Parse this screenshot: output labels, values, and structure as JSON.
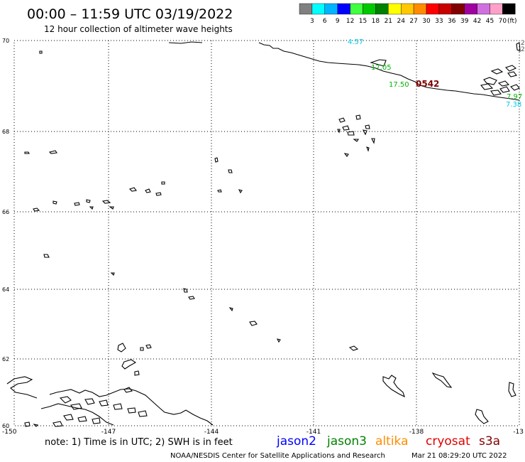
{
  "header": {
    "title": "00:00 – 11:59 UTC 03/19/2022",
    "subtitle": "12 hour collection of altimeter wave heights"
  },
  "scale": {
    "unit": "(ft)",
    "labels": [
      "3",
      "6",
      "9",
      "12",
      "15",
      "18",
      "21",
      "24",
      "27",
      "30",
      "33",
      "36",
      "39",
      "42",
      "45",
      "70"
    ],
    "colors": [
      "#808080",
      "#00ffff",
      "#00b4ff",
      "#0000ff",
      "#40ff40",
      "#00c800",
      "#008000",
      "#ffff00",
      "#ffc800",
      "#ff8c00",
      "#ff0000",
      "#c80000",
      "#800000",
      "#a000a0",
      "#d070e0",
      "#ffa0c8",
      "#000000"
    ]
  },
  "map": {
    "lat_labels": [
      "70",
      "68",
      "66",
      "64",
      "62",
      "60"
    ],
    "lon_labels": [
      "-150",
      "-147",
      "-144",
      "-141",
      "-138",
      "-13"
    ],
    "edge_marks": [
      "2",
      "2"
    ],
    "observations": [
      {
        "text": "4.57",
        "color": "#00c8e6"
      },
      {
        "text": "17.05",
        "color": "#00b400"
      },
      {
        "text": "17.50",
        "color": "#00b400"
      },
      {
        "text": "0542",
        "color": "#800000"
      },
      {
        "text": "7.97",
        "color": "#00b400"
      },
      {
        "text": "7.38",
        "color": "#00c8e6"
      }
    ]
  },
  "footer": {
    "note": "note: 1) Time is in UTC; 2) SWH is in feet",
    "satellites": [
      {
        "name": "jason2",
        "color": "#0000ff"
      },
      {
        "name": "jason3",
        "color": "#008000"
      },
      {
        "name": "altika",
        "color": "#ff8c00"
      },
      {
        "name": "cryosat",
        "color": "#e00000"
      },
      {
        "name": "s3a",
        "color": "#800000"
      }
    ],
    "credit": "NOAA/NESDIS Center for Satellite Applications and Research",
    "timestamp": "Mar 21 08:29:20 UTC 2022"
  }
}
